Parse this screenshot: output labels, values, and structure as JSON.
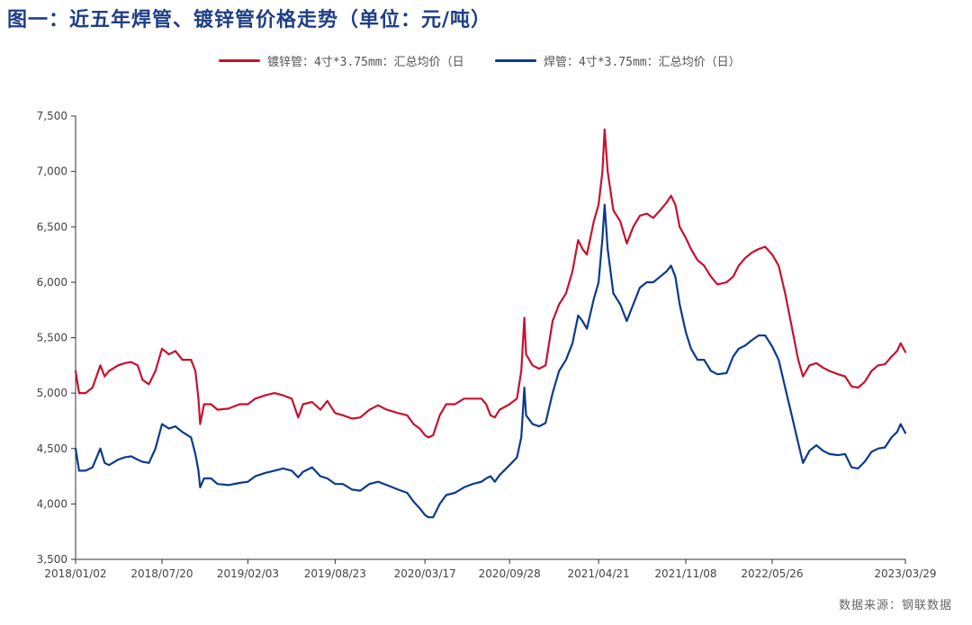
{
  "title": "图一：近五年焊管、镀锌管价格走势（单位：元/吨）",
  "source": "数据来源：钢联数据",
  "colors": {
    "series1": "#c8102e",
    "series2": "#0a3a8c",
    "axis": "#333333"
  },
  "chart_data": {
    "type": "line",
    "title": "图一：近五年焊管、镀锌管价格走势（单位：元/吨）",
    "legend_position": "top-center",
    "grid": false,
    "ylim": [
      3500,
      7500
    ],
    "yticks": [
      "3,500",
      "4,000",
      "4,500",
      "5,000",
      "5,500",
      "6,000",
      "6,500",
      "7,000",
      "7,500"
    ],
    "ytick_values": [
      3500,
      4000,
      4500,
      5000,
      5500,
      6000,
      6500,
      7000,
      7500
    ],
    "xlim": [
      "2018-01-02",
      "2023-03-29"
    ],
    "xticks": [
      "2018/01/02",
      "2018/07/20",
      "2019/02/03",
      "2019/08/23",
      "2020/03/17",
      "2020/09/28",
      "2021/04/21",
      "2021/11/08",
      "2022/05/26",
      "2023/03/29"
    ],
    "xtick_dates": [
      "2018-01-02",
      "2018-07-20",
      "2019-02-03",
      "2019-08-23",
      "2020-03-17",
      "2020-09-28",
      "2021-04-21",
      "2021-11-08",
      "2022-05-26",
      "2023-03-29"
    ],
    "series": [
      {
        "name": "镀锌管：4寸*3.75mm：汇总均价（日",
        "color": "#c8102e",
        "points": [
          [
            "2018-01-02",
            5200
          ],
          [
            "2018-01-10",
            5000
          ],
          [
            "2018-01-25",
            5000
          ],
          [
            "2018-02-10",
            5050
          ],
          [
            "2018-02-28",
            5250
          ],
          [
            "2018-03-10",
            5150
          ],
          [
            "2018-03-20",
            5200
          ],
          [
            "2018-04-10",
            5250
          ],
          [
            "2018-04-25",
            5270
          ],
          [
            "2018-05-10",
            5280
          ],
          [
            "2018-05-25",
            5250
          ],
          [
            "2018-06-05",
            5120
          ],
          [
            "2018-06-20",
            5080
          ],
          [
            "2018-07-05",
            5200
          ],
          [
            "2018-07-20",
            5400
          ],
          [
            "2018-08-05",
            5350
          ],
          [
            "2018-08-20",
            5380
          ],
          [
            "2018-09-05",
            5300
          ],
          [
            "2018-09-25",
            5300
          ],
          [
            "2018-10-05",
            5200
          ],
          [
            "2018-10-12",
            4950
          ],
          [
            "2018-10-16",
            4720
          ],
          [
            "2018-10-25",
            4900
          ],
          [
            "2018-11-10",
            4900
          ],
          [
            "2018-11-25",
            4850
          ],
          [
            "2018-12-20",
            4860
          ],
          [
            "2019-01-15",
            4900
          ],
          [
            "2019-02-03",
            4900
          ],
          [
            "2019-02-20",
            4950
          ],
          [
            "2019-03-15",
            4980
          ],
          [
            "2019-04-05",
            5000
          ],
          [
            "2019-04-25",
            4980
          ],
          [
            "2019-05-15",
            4950
          ],
          [
            "2019-05-30",
            4780
          ],
          [
            "2019-06-10",
            4900
          ],
          [
            "2019-07-01",
            4920
          ],
          [
            "2019-07-20",
            4850
          ],
          [
            "2019-08-05",
            4930
          ],
          [
            "2019-08-23",
            4820
          ],
          [
            "2019-09-10",
            4800
          ],
          [
            "2019-10-01",
            4770
          ],
          [
            "2019-10-20",
            4780
          ],
          [
            "2019-11-10",
            4850
          ],
          [
            "2019-11-30",
            4890
          ],
          [
            "2019-12-20",
            4850
          ],
          [
            "2020-01-15",
            4820
          ],
          [
            "2020-02-05",
            4800
          ],
          [
            "2020-02-20",
            4720
          ],
          [
            "2020-03-05",
            4680
          ],
          [
            "2020-03-17",
            4620
          ],
          [
            "2020-03-25",
            4600
          ],
          [
            "2020-04-05",
            4620
          ],
          [
            "2020-04-20",
            4800
          ],
          [
            "2020-05-05",
            4900
          ],
          [
            "2020-05-25",
            4900
          ],
          [
            "2020-06-15",
            4950
          ],
          [
            "2020-07-05",
            4950
          ],
          [
            "2020-07-25",
            4950
          ],
          [
            "2020-08-05",
            4900
          ],
          [
            "2020-08-15",
            4800
          ],
          [
            "2020-08-25",
            4780
          ],
          [
            "2020-09-05",
            4850
          ],
          [
            "2020-09-28",
            4900
          ],
          [
            "2020-10-15",
            4950
          ],
          [
            "2020-10-25",
            5200
          ],
          [
            "2020-11-01",
            5680
          ],
          [
            "2020-11-05",
            5350
          ],
          [
            "2020-11-20",
            5250
          ],
          [
            "2020-12-05",
            5220
          ],
          [
            "2020-12-20",
            5250
          ],
          [
            "2021-01-05",
            5650
          ],
          [
            "2021-01-20",
            5800
          ],
          [
            "2021-02-05",
            5900
          ],
          [
            "2021-02-20",
            6100
          ],
          [
            "2021-03-05",
            6380
          ],
          [
            "2021-03-15",
            6300
          ],
          [
            "2021-03-25",
            6250
          ],
          [
            "2021-04-10",
            6550
          ],
          [
            "2021-04-21",
            6700
          ],
          [
            "2021-04-30",
            7000
          ],
          [
            "2021-05-05",
            7380
          ],
          [
            "2021-05-12",
            7000
          ],
          [
            "2021-05-25",
            6650
          ],
          [
            "2021-06-10",
            6550
          ],
          [
            "2021-06-25",
            6350
          ],
          [
            "2021-07-10",
            6500
          ],
          [
            "2021-07-25",
            6600
          ],
          [
            "2021-08-10",
            6620
          ],
          [
            "2021-08-25",
            6580
          ],
          [
            "2021-09-10",
            6650
          ],
          [
            "2021-09-25",
            6720
          ],
          [
            "2021-10-05",
            6780
          ],
          [
            "2021-10-15",
            6700
          ],
          [
            "2021-10-25",
            6500
          ],
          [
            "2021-11-08",
            6400
          ],
          [
            "2021-11-20",
            6300
          ],
          [
            "2021-12-05",
            6200
          ],
          [
            "2021-12-20",
            6150
          ],
          [
            "2022-01-05",
            6050
          ],
          [
            "2022-01-20",
            5980
          ],
          [
            "2022-02-10",
            6000
          ],
          [
            "2022-02-25",
            6050
          ],
          [
            "2022-03-10",
            6150
          ],
          [
            "2022-03-25",
            6220
          ],
          [
            "2022-04-10",
            6270
          ],
          [
            "2022-04-25",
            6300
          ],
          [
            "2022-05-10",
            6320
          ],
          [
            "2022-05-26",
            6250
          ],
          [
            "2022-06-10",
            6150
          ],
          [
            "2022-06-25",
            5900
          ],
          [
            "2022-07-10",
            5600
          ],
          [
            "2022-07-25",
            5300
          ],
          [
            "2022-08-05",
            5150
          ],
          [
            "2022-08-20",
            5250
          ],
          [
            "2022-09-05",
            5270
          ],
          [
            "2022-09-20",
            5230
          ],
          [
            "2022-10-05",
            5200
          ],
          [
            "2022-10-25",
            5170
          ],
          [
            "2022-11-10",
            5150
          ],
          [
            "2022-11-25",
            5060
          ],
          [
            "2022-12-10",
            5050
          ],
          [
            "2022-12-25",
            5100
          ],
          [
            "2023-01-10",
            5200
          ],
          [
            "2023-01-25",
            5250
          ],
          [
            "2023-02-10",
            5260
          ],
          [
            "2023-02-25",
            5330
          ],
          [
            "2023-03-10",
            5380
          ],
          [
            "2023-03-18",
            5450
          ],
          [
            "2023-03-29",
            5370
          ]
        ]
      },
      {
        "name": "焊管：4寸*3.75mm：汇总均价（日）",
        "color": "#0a3a8c",
        "points": [
          [
            "2018-01-02",
            4500
          ],
          [
            "2018-01-10",
            4300
          ],
          [
            "2018-01-25",
            4300
          ],
          [
            "2018-02-10",
            4330
          ],
          [
            "2018-02-28",
            4500
          ],
          [
            "2018-03-10",
            4370
          ],
          [
            "2018-03-20",
            4350
          ],
          [
            "2018-04-10",
            4400
          ],
          [
            "2018-04-25",
            4420
          ],
          [
            "2018-05-10",
            4430
          ],
          [
            "2018-05-25",
            4400
          ],
          [
            "2018-06-05",
            4380
          ],
          [
            "2018-06-20",
            4370
          ],
          [
            "2018-07-05",
            4500
          ],
          [
            "2018-07-20",
            4720
          ],
          [
            "2018-08-05",
            4680
          ],
          [
            "2018-08-20",
            4700
          ],
          [
            "2018-09-05",
            4650
          ],
          [
            "2018-09-25",
            4600
          ],
          [
            "2018-10-05",
            4450
          ],
          [
            "2018-10-12",
            4300
          ],
          [
            "2018-10-16",
            4150
          ],
          [
            "2018-10-25",
            4230
          ],
          [
            "2018-11-10",
            4230
          ],
          [
            "2018-11-25",
            4180
          ],
          [
            "2018-12-20",
            4170
          ],
          [
            "2019-01-15",
            4190
          ],
          [
            "2019-02-03",
            4200
          ],
          [
            "2019-02-20",
            4250
          ],
          [
            "2019-03-15",
            4280
          ],
          [
            "2019-04-05",
            4300
          ],
          [
            "2019-04-25",
            4320
          ],
          [
            "2019-05-15",
            4300
          ],
          [
            "2019-05-30",
            4240
          ],
          [
            "2019-06-10",
            4290
          ],
          [
            "2019-07-01",
            4330
          ],
          [
            "2019-07-20",
            4250
          ],
          [
            "2019-08-05",
            4230
          ],
          [
            "2019-08-23",
            4180
          ],
          [
            "2019-09-10",
            4180
          ],
          [
            "2019-10-01",
            4130
          ],
          [
            "2019-10-20",
            4120
          ],
          [
            "2019-11-10",
            4180
          ],
          [
            "2019-11-30",
            4200
          ],
          [
            "2019-12-20",
            4170
          ],
          [
            "2020-01-15",
            4130
          ],
          [
            "2020-02-05",
            4100
          ],
          [
            "2020-02-20",
            4020
          ],
          [
            "2020-03-05",
            3960
          ],
          [
            "2020-03-17",
            3900
          ],
          [
            "2020-03-25",
            3880
          ],
          [
            "2020-04-05",
            3880
          ],
          [
            "2020-04-20",
            4000
          ],
          [
            "2020-05-05",
            4080
          ],
          [
            "2020-05-25",
            4100
          ],
          [
            "2020-06-15",
            4150
          ],
          [
            "2020-07-05",
            4180
          ],
          [
            "2020-07-25",
            4200
          ],
          [
            "2020-08-05",
            4230
          ],
          [
            "2020-08-15",
            4250
          ],
          [
            "2020-08-25",
            4200
          ],
          [
            "2020-09-05",
            4260
          ],
          [
            "2020-09-28",
            4350
          ],
          [
            "2020-10-15",
            4420
          ],
          [
            "2020-10-25",
            4600
          ],
          [
            "2020-11-01",
            5050
          ],
          [
            "2020-11-05",
            4800
          ],
          [
            "2020-11-20",
            4720
          ],
          [
            "2020-12-05",
            4700
          ],
          [
            "2020-12-20",
            4730
          ],
          [
            "2021-01-05",
            5000
          ],
          [
            "2021-01-20",
            5200
          ],
          [
            "2021-02-05",
            5300
          ],
          [
            "2021-02-20",
            5450
          ],
          [
            "2021-03-05",
            5700
          ],
          [
            "2021-03-15",
            5650
          ],
          [
            "2021-03-25",
            5580
          ],
          [
            "2021-04-10",
            5850
          ],
          [
            "2021-04-21",
            6000
          ],
          [
            "2021-04-30",
            6400
          ],
          [
            "2021-05-05",
            6700
          ],
          [
            "2021-05-12",
            6300
          ],
          [
            "2021-05-25",
            5900
          ],
          [
            "2021-06-10",
            5800
          ],
          [
            "2021-06-25",
            5650
          ],
          [
            "2021-07-10",
            5800
          ],
          [
            "2021-07-25",
            5950
          ],
          [
            "2021-08-10",
            6000
          ],
          [
            "2021-08-25",
            6000
          ],
          [
            "2021-09-10",
            6050
          ],
          [
            "2021-09-25",
            6100
          ],
          [
            "2021-10-05",
            6150
          ],
          [
            "2021-10-15",
            6050
          ],
          [
            "2021-10-25",
            5800
          ],
          [
            "2021-11-08",
            5550
          ],
          [
            "2021-11-20",
            5400
          ],
          [
            "2021-12-05",
            5300
          ],
          [
            "2021-12-20",
            5300
          ],
          [
            "2022-01-05",
            5200
          ],
          [
            "2022-01-20",
            5170
          ],
          [
            "2022-02-10",
            5180
          ],
          [
            "2022-02-25",
            5330
          ],
          [
            "2022-03-10",
            5400
          ],
          [
            "2022-03-25",
            5430
          ],
          [
            "2022-04-10",
            5480
          ],
          [
            "2022-04-25",
            5520
          ],
          [
            "2022-05-10",
            5520
          ],
          [
            "2022-05-26",
            5420
          ],
          [
            "2022-06-10",
            5300
          ],
          [
            "2022-06-25",
            5050
          ],
          [
            "2022-07-10",
            4800
          ],
          [
            "2022-07-25",
            4550
          ],
          [
            "2022-08-05",
            4370
          ],
          [
            "2022-08-20",
            4480
          ],
          [
            "2022-09-05",
            4530
          ],
          [
            "2022-09-20",
            4480
          ],
          [
            "2022-10-05",
            4450
          ],
          [
            "2022-10-25",
            4440
          ],
          [
            "2022-11-10",
            4450
          ],
          [
            "2022-11-25",
            4330
          ],
          [
            "2022-12-10",
            4320
          ],
          [
            "2022-12-25",
            4380
          ],
          [
            "2023-01-10",
            4470
          ],
          [
            "2023-01-25",
            4500
          ],
          [
            "2023-02-10",
            4510
          ],
          [
            "2023-02-25",
            4600
          ],
          [
            "2023-03-10",
            4650
          ],
          [
            "2023-03-18",
            4720
          ],
          [
            "2023-03-29",
            4640
          ]
        ]
      }
    ]
  }
}
